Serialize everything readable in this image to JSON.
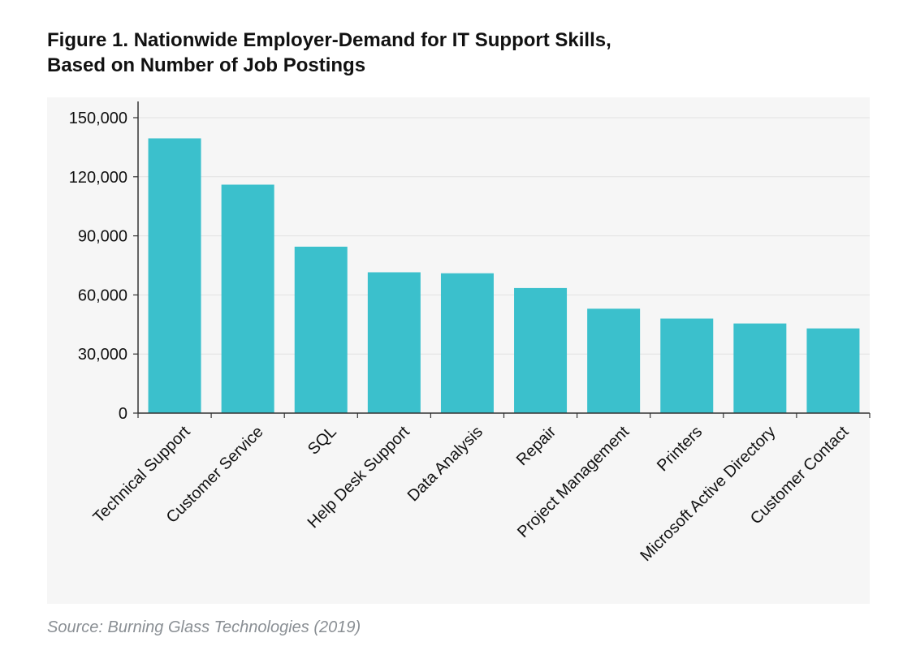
{
  "figure": {
    "title_line1": "Figure 1. Nationwide Employer-Demand for IT Support Skills,",
    "title_line2": "Based on Number of Job Postings",
    "source": "Source: Burning Glass Technologies (2019)"
  },
  "chart_data": {
    "type": "bar",
    "title": "Figure 1. Nationwide Employer-Demand for IT Support Skills, Based on Number of Job Postings",
    "xlabel": "",
    "ylabel": "",
    "ylim": [
      0,
      150000
    ],
    "yticks": [
      0,
      30000,
      60000,
      90000,
      120000,
      150000
    ],
    "ytick_labels": [
      "0",
      "30,000",
      "60,000",
      "90,000",
      "120,000",
      "150,000"
    ],
    "grid": true,
    "legend": "none",
    "bar_color": "#3bc0cc",
    "categories": [
      "Technical Support",
      "Customer Service",
      "SQL",
      "Help Desk Support",
      "Data Analysis",
      "Repair",
      "Project Management",
      "Printers",
      "Microsoft Active Directory",
      "Customer Contact"
    ],
    "values": [
      139500,
      116000,
      84500,
      71500,
      71000,
      63500,
      53000,
      48000,
      45500,
      43000
    ]
  }
}
